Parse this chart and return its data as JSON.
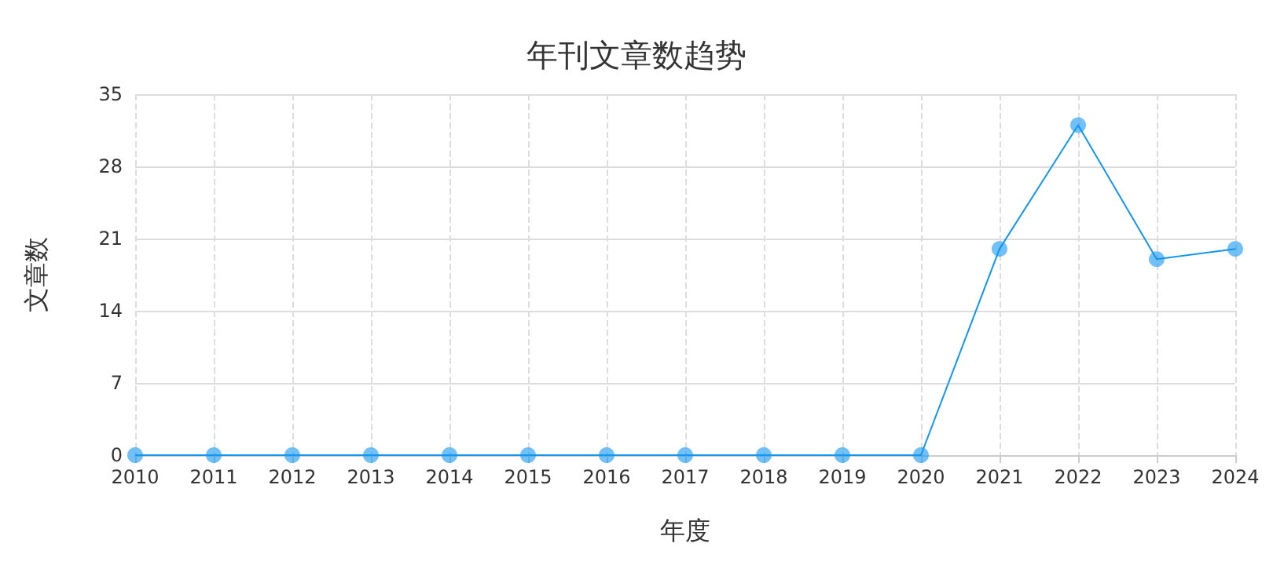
{
  "chart_data": {
    "type": "line",
    "title": "年刊文章数趋势",
    "xlabel": "年度",
    "ylabel": "文章数",
    "categories": [
      "2010",
      "2011",
      "2012",
      "2013",
      "2014",
      "2015",
      "2016",
      "2017",
      "2018",
      "2019",
      "2020",
      "2021",
      "2022",
      "2023",
      "2024"
    ],
    "series": [
      {
        "color": "#1296f0",
        "values": [
          0,
          0,
          0,
          0,
          0,
          0,
          0,
          0,
          0,
          0,
          0,
          20,
          32,
          19,
          20
        ]
      }
    ],
    "ylim": [
      0,
      35
    ],
    "yticks": [
      0,
      7,
      14,
      21,
      28,
      35
    ],
    "grid": true,
    "marker": "circle",
    "line_style": "solid"
  }
}
